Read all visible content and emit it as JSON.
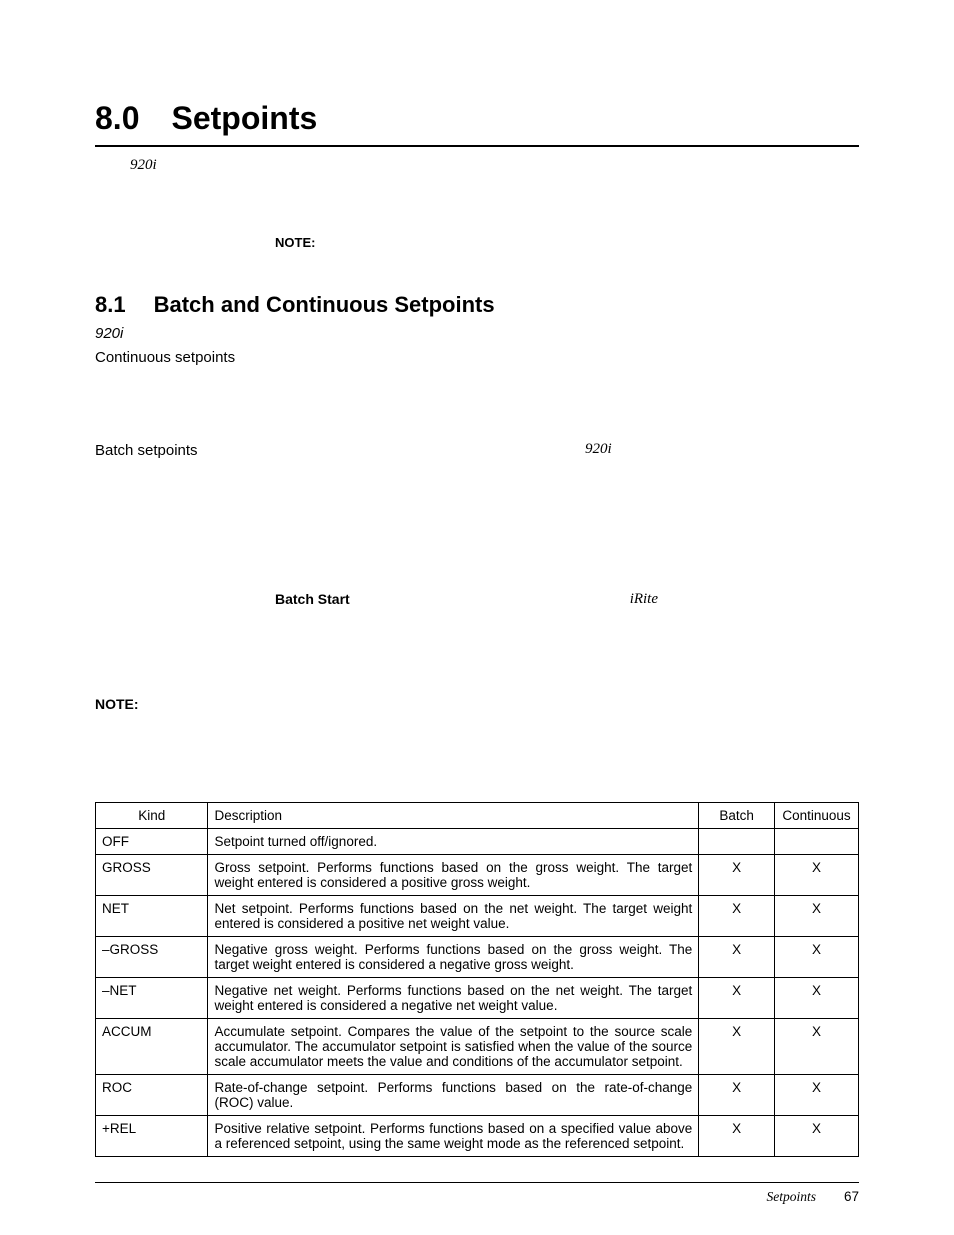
{
  "h1": {
    "num": "8.0",
    "title": "Setpoints"
  },
  "intro_italic": "920i",
  "note1_label": "NOTE:",
  "h2": {
    "num": "8.1",
    "title": "Batch and Continuous Setpoints"
  },
  "sec_italic": "920i",
  "continuous_label": "Continuous setpoints",
  "batch_label": "Batch setpoints",
  "batch_italic": "920i",
  "batch_start_label": "Batch Start",
  "batch_start_italic": "iRite",
  "note2_label": "NOTE:",
  "table": {
    "headers": [
      "Kind",
      "Description",
      "Batch",
      "Continuous"
    ],
    "rows": [
      {
        "kind": "OFF",
        "desc": "Setpoint turned off/ignored.",
        "batch": "",
        "cont": ""
      },
      {
        "kind": "GROSS",
        "desc": "Gross setpoint. Performs functions based on the gross weight. The target weight entered is considered a positive gross weight.",
        "batch": "X",
        "cont": "X"
      },
      {
        "kind": "NET",
        "desc": "Net setpoint. Performs functions based on the net weight. The target weight entered is considered a positive net weight value.",
        "batch": "X",
        "cont": "X"
      },
      {
        "kind": "–GROSS",
        "desc": "Negative gross weight. Performs functions based on the gross weight. The target weight entered is considered a negative gross weight.",
        "batch": "X",
        "cont": "X"
      },
      {
        "kind": "–NET",
        "desc": "Negative net weight. Performs functions based on the net weight. The target weight entered is considered a negative net weight value.",
        "batch": "X",
        "cont": "X"
      },
      {
        "kind": "ACCUM",
        "desc": "Accumulate setpoint. Compares the value of the setpoint to the source scale accumulator. The accumulator setpoint is satisfied when the value of the source scale accumulator meets the value and conditions of the accumulator setpoint.",
        "batch": "X",
        "cont": "X"
      },
      {
        "kind": "ROC",
        "desc": "Rate-of-change setpoint. Performs functions based on the rate-of-change (ROC) value.",
        "batch": "X",
        "cont": "X"
      },
      {
        "kind": "+REL",
        "desc": "Positive relative setpoint. Performs functions based on a specified value above a referenced setpoint, using the same weight mode as the referenced setpoint.",
        "batch": "X",
        "cont": "X"
      }
    ]
  },
  "footer": {
    "section": "Setpoints",
    "page": "67"
  }
}
